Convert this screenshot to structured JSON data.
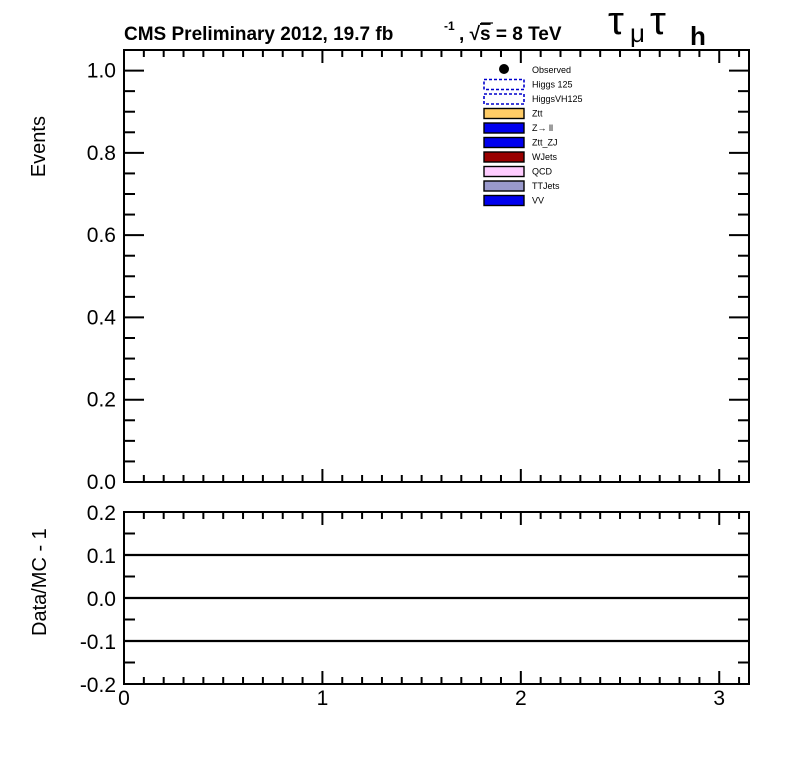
{
  "header": {
    "experiment_text": "CMS Preliminary 2012, 19.7 fb",
    "lumi_exponent": "-1",
    "energy_sep": ", ",
    "sqrt_symbol": "√",
    "energy_var": "s",
    "energy_text": " = 8 TeV",
    "channel_tau": "τ",
    "channel_mu": "μ",
    "channel_h": "h"
  },
  "chart_data": [
    {
      "type": "bar",
      "title": "",
      "xlabel": "",
      "ylabel": "Events",
      "xlim": [
        0,
        3.15
      ],
      "ylim": [
        0,
        1.05
      ],
      "x_ticks": [
        0,
        1,
        2,
        3
      ],
      "y_ticks": [
        {
          "value": 0.0,
          "label": "0.0"
        },
        {
          "value": 0.2,
          "label": "0.2"
        },
        {
          "value": 0.4,
          "label": "0.4"
        },
        {
          "value": 0.6,
          "label": "0.6"
        },
        {
          "value": 0.8,
          "label": "0.8"
        },
        {
          "value": 1.0,
          "label": "1.0"
        }
      ],
      "legend_position": "top-right",
      "legend": [
        {
          "label": "Observed",
          "style": "marker",
          "color": "#000000"
        },
        {
          "label": "Higgs 125",
          "style": "dashed-box",
          "color": "#0000cc"
        },
        {
          "label": "HiggsVH125",
          "style": "dashed-box",
          "color": "#0000cc"
        },
        {
          "label": "Ztt",
          "style": "fill",
          "color": "#ffcc66"
        },
        {
          "label": "Z→ ll",
          "style": "fill",
          "color": "#0000ee"
        },
        {
          "label": "Ztt_ZJ",
          "style": "fill",
          "color": "#0000ee"
        },
        {
          "label": "WJets",
          "style": "fill",
          "color": "#990000"
        },
        {
          "label": "QCD",
          "style": "fill",
          "color": "#ffccff"
        },
        {
          "label": "TTJets",
          "style": "fill",
          "color": "#9999cc"
        },
        {
          "label": "VV",
          "style": "fill",
          "color": "#0000ee"
        }
      ],
      "series": []
    },
    {
      "type": "line",
      "title": "",
      "xlabel": "",
      "ylabel": "Data/MC - 1",
      "xlim": [
        0,
        3.15
      ],
      "ylim": [
        -0.2,
        0.2
      ],
      "x_ticks": [
        {
          "value": 0,
          "label": "0"
        },
        {
          "value": 1,
          "label": "1"
        },
        {
          "value": 2,
          "label": "2"
        },
        {
          "value": 3,
          "label": "3"
        }
      ],
      "y_ticks": [
        {
          "value": 0.2,
          "label": "0.2"
        },
        {
          "value": 0.1,
          "label": "0.1"
        },
        {
          "value": 0.0,
          "label": "0.0"
        },
        {
          "value": -0.1,
          "label": "-0.1"
        },
        {
          "value": -0.2,
          "label": "-0.2"
        }
      ],
      "reference_lines": [
        0.1,
        0.0,
        -0.1
      ],
      "series": []
    }
  ]
}
